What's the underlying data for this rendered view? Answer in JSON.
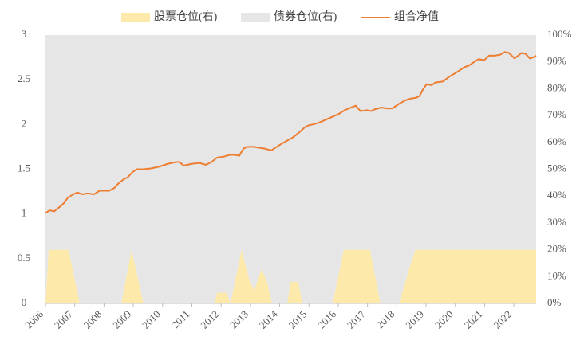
{
  "chart_data": {
    "type": "combo",
    "xlim": [
      2006,
      2022.76
    ],
    "xticks": [
      2006,
      2007,
      2008,
      2009,
      2010,
      2011,
      2012,
      2013,
      2014,
      2015,
      2016,
      2017,
      2018,
      2019,
      2020,
      2021,
      2022
    ],
    "ylim": [
      0,
      3
    ],
    "yticks": [
      0,
      0.5,
      1,
      1.5,
      2,
      2.5,
      3
    ],
    "y2lim": [
      0,
      100
    ],
    "y2ticks": [
      {
        "value": 0,
        "label": "0%"
      },
      {
        "value": 10,
        "label": "10%"
      },
      {
        "value": 20,
        "label": "20%"
      },
      {
        "value": 30,
        "label": "30%"
      },
      {
        "value": 40,
        "label": "40%"
      },
      {
        "value": 50,
        "label": "50%"
      },
      {
        "value": 60,
        "label": "60%"
      },
      {
        "value": 70,
        "label": "70%"
      },
      {
        "value": 80,
        "label": "80%"
      },
      {
        "value": 90,
        "label": "90%"
      },
      {
        "value": 100,
        "label": "100%"
      }
    ],
    "legend": "top",
    "series": [
      {
        "name": "股票仓位(右)",
        "type": "area",
        "axis": "y2",
        "color": "#fde9a9",
        "x": [
          2006.0,
          2006.11,
          2006.79,
          2007.17,
          2008.59,
          2008.94,
          2009.35,
          2011.78,
          2011.86,
          2012.19,
          2012.32,
          2012.7,
          2012.98,
          2013.14,
          2013.38,
          2013.57,
          2013.74,
          2014.26,
          2014.37,
          2014.64,
          2014.77,
          2015.81,
          2016.19,
          2017.09,
          2017.44,
          2018.07,
          2018.21,
          2018.48,
          2018.64,
          2022.76
        ],
        "values": [
          0,
          20,
          20,
          0,
          0,
          20,
          0,
          0,
          4,
          4,
          0,
          20,
          8,
          5,
          13,
          8,
          0,
          0,
          8,
          8,
          0,
          0,
          20,
          20,
          0,
          0,
          5,
          15,
          20,
          20
        ]
      },
      {
        "name": "债券仓位(右)",
        "type": "area",
        "axis": "y2",
        "color": "#e6e6e6",
        "x": [
          2006.0,
          2006.11,
          2006.79,
          2007.17,
          2008.59,
          2008.94,
          2009.35,
          2011.78,
          2011.86,
          2012.19,
          2012.32,
          2012.7,
          2012.98,
          2013.14,
          2013.38,
          2013.57,
          2013.74,
          2014.26,
          2014.37,
          2014.64,
          2014.77,
          2015.81,
          2016.19,
          2017.09,
          2017.44,
          2018.07,
          2018.21,
          2018.48,
          2018.64,
          2022.76
        ],
        "values": [
          100,
          80,
          80,
          100,
          100,
          80,
          100,
          100,
          96,
          96,
          100,
          80,
          92,
          95,
          87,
          92,
          100,
          100,
          92,
          92,
          100,
          100,
          80,
          80,
          100,
          100,
          95,
          85,
          80,
          80
        ]
      },
      {
        "name": "组合净值",
        "type": "line",
        "axis": "y",
        "color": "#ed7d31",
        "x": [
          2006.0,
          2006.14,
          2006.3,
          2006.49,
          2006.63,
          2006.76,
          2006.95,
          2007.09,
          2007.25,
          2007.44,
          2007.66,
          2007.85,
          2008.02,
          2008.18,
          2008.35,
          2008.49,
          2008.68,
          2008.81,
          2008.98,
          2009.13,
          2009.35,
          2009.62,
          2009.9,
          2010.17,
          2010.45,
          2010.58,
          2010.72,
          2010.99,
          2011.26,
          2011.48,
          2011.67,
          2011.86,
          2012.08,
          2012.29,
          2012.49,
          2012.62,
          2012.76,
          2012.89,
          2013.11,
          2013.3,
          2013.49,
          2013.71,
          2013.85,
          2014.04,
          2014.26,
          2014.47,
          2014.66,
          2014.86,
          2014.99,
          2015.13,
          2015.34,
          2015.62,
          2015.83,
          2016.03,
          2016.22,
          2016.44,
          2016.6,
          2016.76,
          2016.98,
          2017.12,
          2017.25,
          2017.47,
          2017.66,
          2017.85,
          2018.07,
          2018.29,
          2018.48,
          2018.67,
          2018.78,
          2018.89,
          2019.02,
          2019.19,
          2019.32,
          2019.57,
          2019.73,
          2019.87,
          2020.03,
          2020.17,
          2020.31,
          2020.47,
          2020.69,
          2020.8,
          2020.99,
          2021.15,
          2021.34,
          2021.53,
          2021.69,
          2021.83,
          2022.02,
          2022.15,
          2022.26,
          2022.4,
          2022.54,
          2022.65,
          2022.76
        ],
        "values": [
          1.01,
          1.04,
          1.03,
          1.08,
          1.12,
          1.18,
          1.22,
          1.24,
          1.22,
          1.23,
          1.22,
          1.26,
          1.26,
          1.26,
          1.29,
          1.34,
          1.39,
          1.41,
          1.47,
          1.5,
          1.5,
          1.51,
          1.53,
          1.56,
          1.58,
          1.58,
          1.54,
          1.56,
          1.57,
          1.55,
          1.58,
          1.63,
          1.64,
          1.66,
          1.66,
          1.65,
          1.73,
          1.75,
          1.75,
          1.74,
          1.73,
          1.71,
          1.74,
          1.78,
          1.82,
          1.86,
          1.91,
          1.97,
          1.99,
          2.0,
          2.02,
          2.06,
          2.09,
          2.12,
          2.16,
          2.19,
          2.21,
          2.15,
          2.16,
          2.15,
          2.17,
          2.19,
          2.18,
          2.18,
          2.23,
          2.27,
          2.29,
          2.3,
          2.32,
          2.39,
          2.45,
          2.44,
          2.47,
          2.48,
          2.52,
          2.55,
          2.58,
          2.61,
          2.64,
          2.66,
          2.71,
          2.73,
          2.72,
          2.77,
          2.77,
          2.78,
          2.81,
          2.8,
          2.74,
          2.77,
          2.8,
          2.79,
          2.74,
          2.75,
          2.77
        ]
      }
    ]
  }
}
